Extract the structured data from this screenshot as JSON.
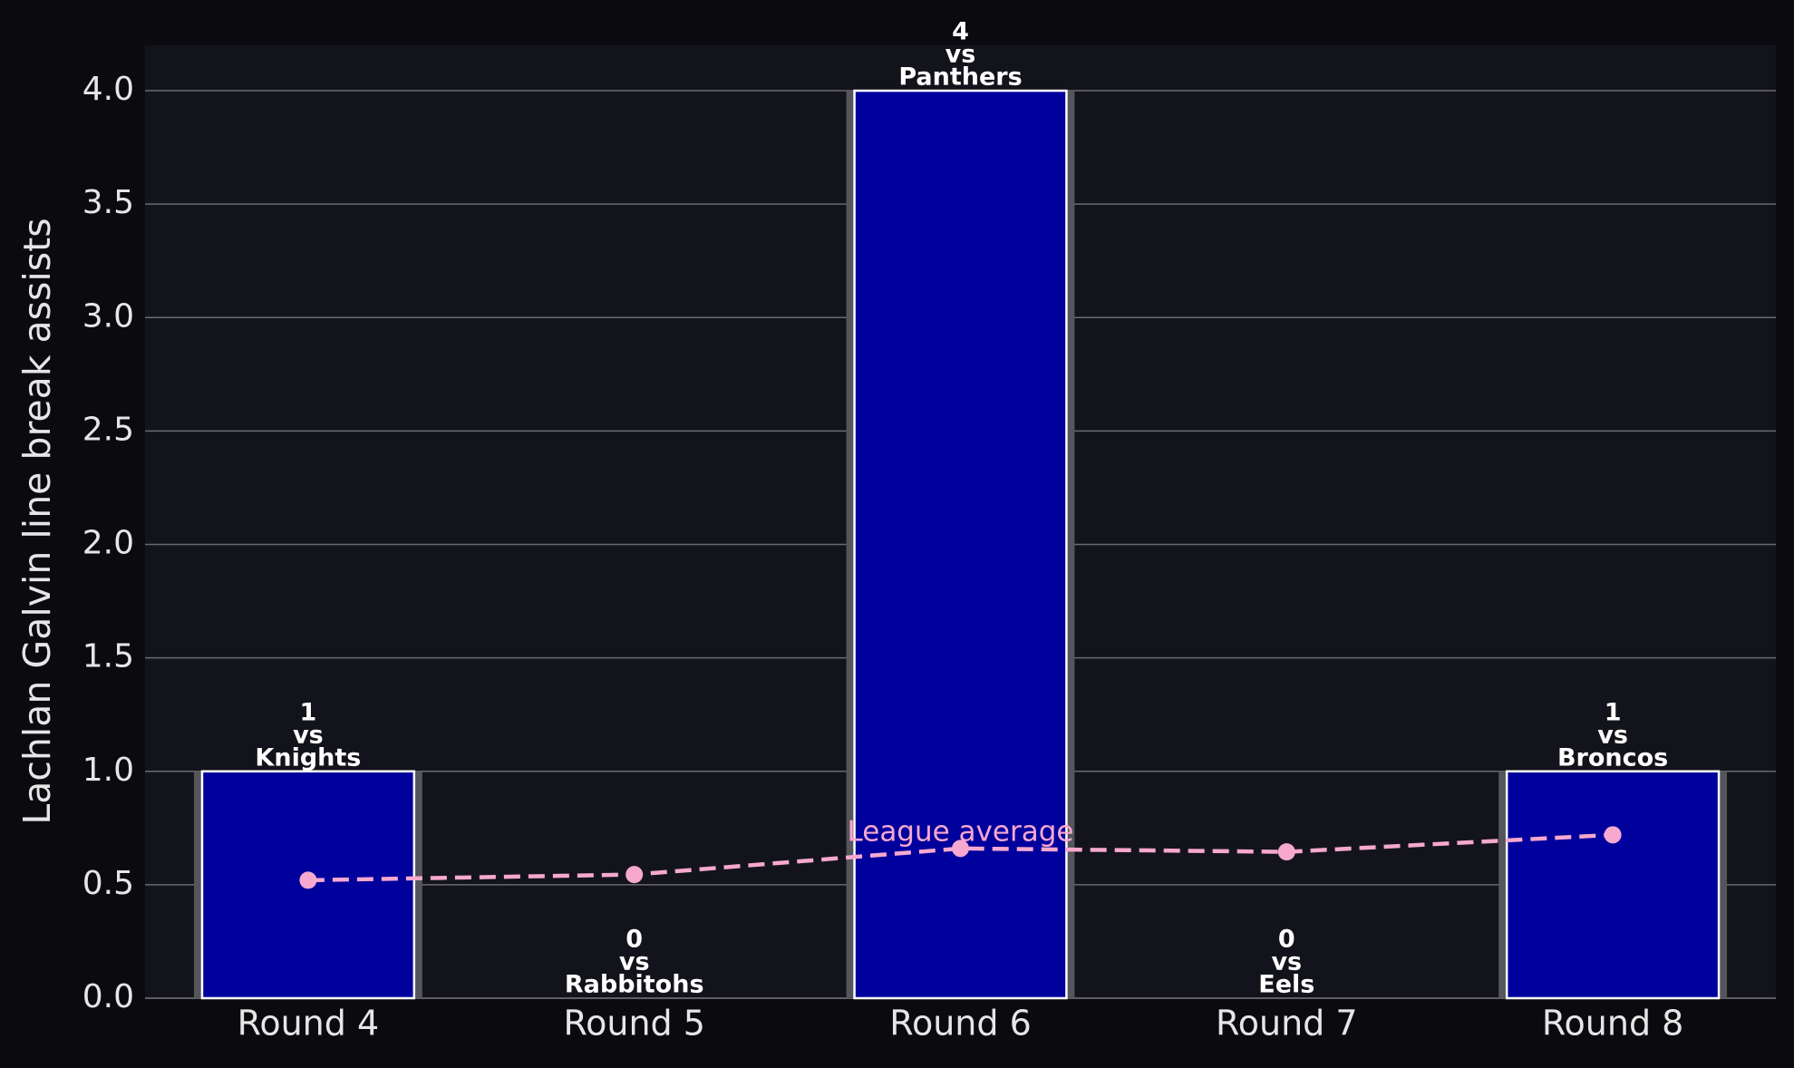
{
  "chart_data": {
    "type": "bar",
    "y_label": "Lachlan Galvin line break assists",
    "categories": [
      "Round 4",
      "Round 5",
      "Round 6",
      "Round 7",
      "Round 8"
    ],
    "series": [
      {
        "type": "bar",
        "values": [
          1,
          0,
          4,
          0,
          1
        ],
        "color": "#00009c"
      },
      {
        "type": "line",
        "name": "League average",
        "values": [
          0.52,
          0.545,
          0.66,
          0.645,
          0.72
        ],
        "color": "#f7a8cf"
      }
    ],
    "label_connector": "vs",
    "opponents": [
      "Knights",
      "Rabbitohs",
      "Panthers",
      "Eels",
      "Broncos"
    ],
    "ylim": [
      0,
      4.2
    ],
    "yticks": [
      {
        "value": 0,
        "label": "0.0"
      },
      0.5,
      {
        "value": 1,
        "label": "1.0"
      },
      1.5,
      {
        "value": 2,
        "label": "2.0"
      },
      2.5,
      {
        "value": 3,
        "label": "3.0"
      },
      3.5,
      {
        "value": 4,
        "label": "4.0"
      }
    ],
    "grid": true
  }
}
